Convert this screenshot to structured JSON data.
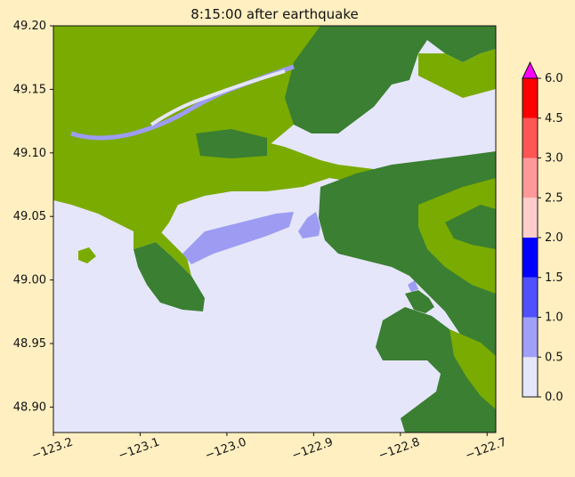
{
  "title": "8:15:00 after earthquake",
  "map": {
    "x_ticks": [
      "−123.2",
      "−123.1",
      "−123.0",
      "−122.9",
      "−122.8",
      "−122.7"
    ],
    "y_ticks": [
      "49.20",
      "49.15",
      "49.10",
      "49.05",
      "49.00",
      "48.95",
      "48.90"
    ],
    "x_range": [
      -123.2,
      -122.69
    ],
    "y_range": [
      48.88,
      49.2
    ],
    "colors": {
      "water": "#e6e6fa",
      "land_low": "#7aab00",
      "land_high": "#3a7f32",
      "shallow_flood": "#9d9cf2",
      "background": "#ffefc1"
    }
  },
  "colorbar": {
    "ticks": [
      "0.0",
      "0.5",
      "1.0",
      "1.5",
      "2.0",
      "2.5",
      "3.0",
      "4.5",
      "6.0"
    ],
    "levels": [
      0.0,
      0.5,
      1.0,
      1.5,
      2.0,
      2.5,
      3.0,
      4.5,
      6.0
    ],
    "colors": [
      "#e6e6fa",
      "#a0a0fa",
      "#5050ff",
      "#0000ff",
      "#ffcccc",
      "#ff9999",
      "#ff5555",
      "#ff0000"
    ],
    "extend_color": "#ff00ff"
  }
}
